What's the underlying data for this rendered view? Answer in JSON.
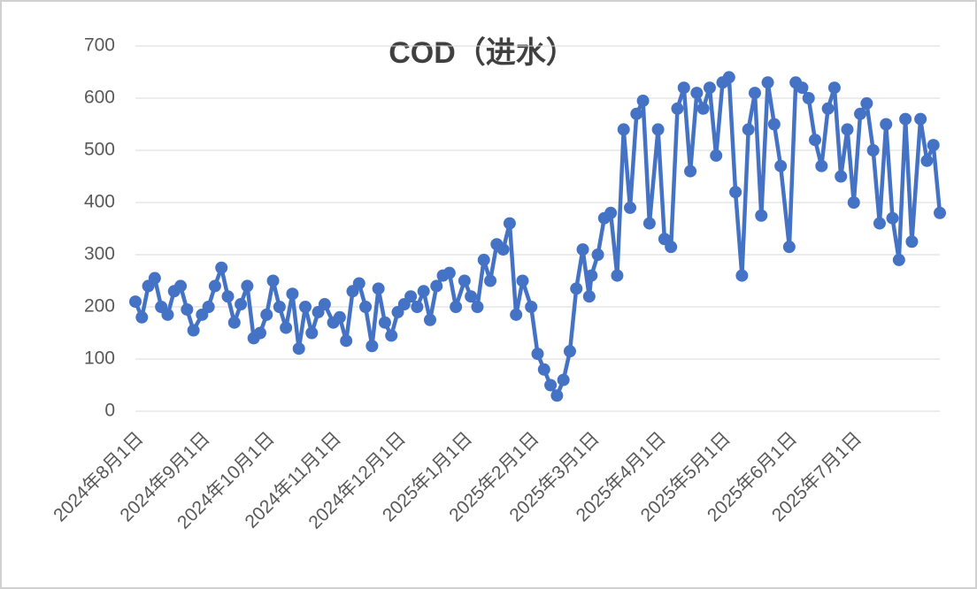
{
  "chart_data": {
    "type": "line",
    "title": "COD（进水）",
    "x": [
      "2024-08-01",
      "2024-08-04",
      "2024-08-07",
      "2024-08-10",
      "2024-08-13",
      "2024-08-16",
      "2024-08-19",
      "2024-08-22",
      "2024-08-25",
      "2024-08-28",
      "2024-09-01",
      "2024-09-04",
      "2024-09-07",
      "2024-09-10",
      "2024-09-13",
      "2024-09-16",
      "2024-09-19",
      "2024-09-22",
      "2024-09-25",
      "2024-09-28",
      "2024-10-01",
      "2024-10-04",
      "2024-10-07",
      "2024-10-10",
      "2024-10-13",
      "2024-10-16",
      "2024-10-19",
      "2024-10-22",
      "2024-10-25",
      "2024-10-28",
      "2024-11-01",
      "2024-11-04",
      "2024-11-07",
      "2024-11-10",
      "2024-11-13",
      "2024-11-16",
      "2024-11-19",
      "2024-11-22",
      "2024-11-25",
      "2024-11-28",
      "2024-12-01",
      "2024-12-04",
      "2024-12-07",
      "2024-12-10",
      "2024-12-13",
      "2024-12-16",
      "2024-12-19",
      "2024-12-22",
      "2024-12-25",
      "2024-12-28",
      "2025-01-01",
      "2025-01-04",
      "2025-01-07",
      "2025-01-10",
      "2025-01-13",
      "2025-01-16",
      "2025-01-19",
      "2025-01-22",
      "2025-01-25",
      "2025-01-28",
      "2025-02-01",
      "2025-02-04",
      "2025-02-07",
      "2025-02-10",
      "2025-02-13",
      "2025-02-16",
      "2025-02-19",
      "2025-02-22",
      "2025-02-25",
      "2025-02-28",
      "2025-03-01",
      "2025-03-04",
      "2025-03-07",
      "2025-03-10",
      "2025-03-13",
      "2025-03-16",
      "2025-03-19",
      "2025-03-22",
      "2025-03-25",
      "2025-03-28",
      "2025-04-01",
      "2025-04-04",
      "2025-04-07",
      "2025-04-10",
      "2025-04-13",
      "2025-04-16",
      "2025-04-19",
      "2025-04-22",
      "2025-04-25",
      "2025-04-28",
      "2025-05-01",
      "2025-05-04",
      "2025-05-07",
      "2025-05-10",
      "2025-05-13",
      "2025-05-16",
      "2025-05-19",
      "2025-05-22",
      "2025-05-25",
      "2025-05-28",
      "2025-06-01",
      "2025-06-04",
      "2025-06-07",
      "2025-06-10",
      "2025-06-13",
      "2025-06-16",
      "2025-06-19",
      "2025-06-22",
      "2025-06-25",
      "2025-06-28",
      "2025-07-01",
      "2025-07-04",
      "2025-07-07",
      "2025-07-10",
      "2025-07-13",
      "2025-07-16",
      "2025-07-19",
      "2025-07-22",
      "2025-07-25",
      "2025-07-28",
      "2025-08-01",
      "2025-08-04",
      "2025-08-07",
      "2025-08-10"
    ],
    "values": [
      210,
      180,
      240,
      255,
      200,
      185,
      230,
      240,
      195,
      155,
      185,
      200,
      240,
      275,
      220,
      170,
      205,
      240,
      140,
      150,
      185,
      250,
      200,
      160,
      225,
      120,
      200,
      150,
      190,
      205,
      170,
      180,
      135,
      230,
      245,
      200,
      125,
      235,
      170,
      145,
      190,
      205,
      220,
      200,
      230,
      175,
      240,
      260,
      265,
      200,
      250,
      220,
      200,
      290,
      250,
      320,
      310,
      360,
      185,
      250,
      200,
      110,
      80,
      50,
      30,
      60,
      115,
      235,
      310,
      220,
      260,
      300,
      370,
      380,
      260,
      540,
      390,
      570,
      595,
      360,
      540,
      330,
      315,
      580,
      620,
      460,
      610,
      580,
      620,
      490,
      630,
      640,
      420,
      260,
      540,
      610,
      375,
      630,
      550,
      470,
      315,
      630,
      620,
      600,
      520,
      470,
      580,
      620,
      450,
      540,
      400,
      570,
      590,
      500,
      360,
      550,
      370,
      290,
      560,
      325,
      560,
      480,
      510,
      380
    ],
    "color": "#4472c4",
    "xlim": [
      "2024-08-01",
      "2025-08-10"
    ],
    "xticks": [
      {
        "value": "2024-08-01",
        "label": "2024年8月1日"
      },
      {
        "value": "2024-09-01",
        "label": "2024年9月1日"
      },
      {
        "value": "2024-10-01",
        "label": "2024年10月1日"
      },
      {
        "value": "2024-11-01",
        "label": "2024年11月1日"
      },
      {
        "value": "2024-12-01",
        "label": "2024年12月1日"
      },
      {
        "value": "2025-01-01",
        "label": "2025年1月1日"
      },
      {
        "value": "2025-02-01",
        "label": "2025年2月1日"
      },
      {
        "value": "2025-03-01",
        "label": "2025年3月1日"
      },
      {
        "value": "2025-04-01",
        "label": "2025年4月1日"
      },
      {
        "value": "2025-05-01",
        "label": "2025年5月1日"
      },
      {
        "value": "2025-06-01",
        "label": "2025年6月1日"
      },
      {
        "value": "2025-07-01",
        "label": "2025年7月1日"
      }
    ],
    "ylim": [
      0,
      700
    ],
    "yticks": [
      0,
      100,
      200,
      300,
      400,
      500,
      600,
      700
    ],
    "grid": true
  }
}
